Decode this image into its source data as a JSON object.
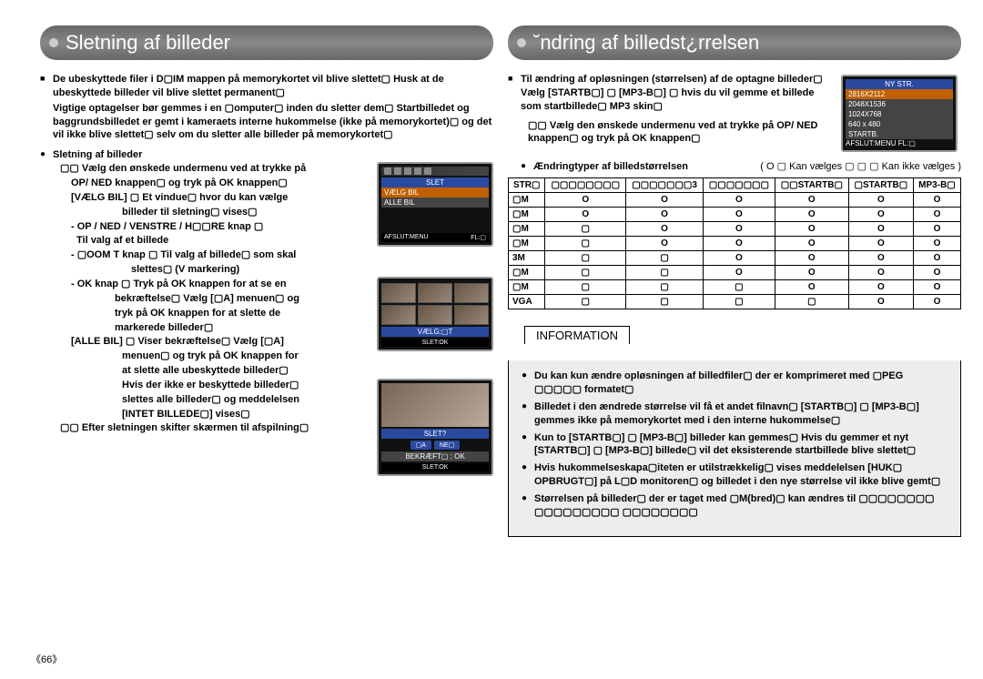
{
  "page_number": "《66》",
  "left": {
    "title": "Sletning af billeder",
    "para1": "De ubeskyttede filer i D▢IM mappen på memorykortet vil blive slettet▢ Husk at de ubeskyttede billeder vil blive slettet permanent▢",
    "para1b": "Vigtige optagelser bør gemmes i en ▢omputer▢ inden du sletter dem▢\nStartbilledet og baggrundsbilledet er gemt i kameraets interne hukommelse (ikke på memorykortet)▢ og det vil ikke blive slettet▢ selv om du sletter alle billeder på memorykortet▢",
    "subhead": "Sletning af billeder",
    "steps": [
      "▢▢ Vælg den ønskede undermenu ved at trykke på",
      "OP/ NED knappen▢ og tryk på OK knappen▢",
      "[VÆLG BIL] ▢ Et vindue▢ hvor du kan vælge",
      "billeder til sletning▢ vises▢",
      "- OP / NED / VENSTRE / H▢▢RE knap ▢",
      "Til valg af et billede",
      "- ▢OOM T knap ▢ Til valg af billede▢ som skal",
      "slettes▢ (V markering)",
      "- OK knap ▢ Tryk på OK knappen for at se en",
      "bekræftelse▢ Vælg [▢A] menuen▢ og",
      "tryk på OK knappen for at slette de",
      "markerede billeder▢",
      "[ALLE BIL] ▢ Viser bekræftelse▢ Vælg [▢A]",
      "menuen▢ og tryk på OK knappen for",
      "at slette alle ubeskyttede billeder▢",
      "Hvis der ikke er beskyttede billeder▢",
      "slettes alle billeder▢ og meddelelsen",
      "[INTET BILLEDE▢] vises▢",
      "▢▢ Efter sletningen skifter skærmen til afspilning▢"
    ],
    "lcd1": {
      "title": "SLET",
      "row1": "VÆLG BIL",
      "row2": "ALLE BIL",
      "foot_l": "AFSLUT:MENU",
      "foot_r": "FL:▢"
    },
    "lcd2": {
      "sel": "VÆLG:▢T",
      "del": "SLET:OK"
    },
    "lcd3": {
      "q": "SLET?",
      "ja": "▢A",
      "nej": "NE▢",
      "confirm": "BEKRÆFT▢ : OK",
      "del": "SLET:OK"
    }
  },
  "right": {
    "title": "˘ndring af billedst¿rrelsen",
    "para1": "Til ændring af opløsningen (størrelsen) af de optagne billeder▢ Vælg [STARTB▢] ▢ [MP3-B▢] ▢ hvis du vil gemme et billede som startbillede▢ MP3 skin▢",
    "step": "▢▢ Vælg den ønskede undermenu ved at trykke på OP/ NED knappen▢ og tryk på OK knappen▢",
    "lcd": {
      "title": "NY STR.",
      "rows": [
        "2816X2112",
        "2048X1536",
        "1024X768",
        "640 x 480",
        "STARTB."
      ],
      "foot_l": "AFSLUT:MENU",
      "foot_r": "FL:▢"
    },
    "legend_left": "Ændringtyper af billedstørrelsen",
    "legend_right": "( O ▢ Kan vælges ▢ ▢ ▢ Kan ikke vælges )",
    "table": {
      "headers": [
        "STR▢",
        "▢▢▢▢▢▢▢▢",
        "▢▢▢▢▢▢▢3",
        "▢▢▢▢▢▢▢",
        "▢▢STARTB▢",
        "▢STARTB▢",
        "MP3-B▢"
      ],
      "rows": [
        [
          "▢M",
          "O",
          "O",
          "O",
          "O",
          "O",
          "O"
        ],
        [
          "▢M",
          "O",
          "O",
          "O",
          "O",
          "O",
          "O"
        ],
        [
          "▢M",
          "▢",
          "O",
          "O",
          "O",
          "O",
          "O"
        ],
        [
          "▢M",
          "▢",
          "O",
          "O",
          "O",
          "O",
          "O"
        ],
        [
          "3M",
          "▢",
          "▢",
          "O",
          "O",
          "O",
          "O"
        ],
        [
          "▢M",
          "▢",
          "▢",
          "O",
          "O",
          "O",
          "O"
        ],
        [
          "▢M",
          "▢",
          "▢",
          "▢",
          "O",
          "O",
          "O"
        ],
        [
          "VGA",
          "▢",
          "▢",
          "▢",
          "▢",
          "O",
          "O"
        ]
      ]
    },
    "info_label": "INFORMATION",
    "info": [
      "Du kan kun ændre opløsningen af billedfiler▢ der er komprimeret med ▢PEG ▢▢▢▢▢ formatet▢",
      "Billedet i den ændrede størrelse vil få et andet filnavn▢ [STARTB▢] ▢ [MP3-B▢] gemmes ikke på memorykortet med i den interne hukommelse▢",
      "Kun to [STARTB▢] ▢ [MP3-B▢] billeder kan gemmes▢ Hvis du gemmer et nyt [STARTB▢] ▢ [MP3-B▢] billede▢ vil det eksisterende startbillede blive slettet▢",
      "Hvis hukommelseskapa▢iteten er utilstrækkelig▢ vises meddelelsen [HUK▢ OPBRUGT▢] på L▢D monitoren▢ og billedet i den nye størrelse vil ikke blive gemt▢",
      "Størrelsen på billeder▢ der er taget med ▢M(bred)▢ kan ændres til ▢▢▢▢▢▢▢▢ ▢▢▢▢▢▢▢▢▢ ▢▢▢▢▢▢▢▢"
    ]
  }
}
